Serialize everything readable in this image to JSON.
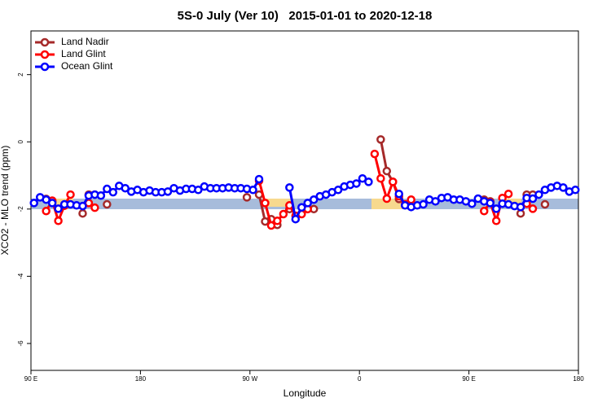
{
  "chart_data": {
    "type": "line",
    "title": "5S-0 July (Ver 10)   2015-01-01 to 2020-12-18",
    "xlabel": "Longitude",
    "ylabel": "XCO2 - MLO trend (ppm)",
    "xlim": [
      90,
      540
    ],
    "xticks": [
      {
        "value": 90,
        "label": "90 E"
      },
      {
        "value": 180,
        "label": "180"
      },
      {
        "value": 270,
        "label": "90 W"
      },
      {
        "value": 360,
        "label": "0"
      },
      {
        "value": 450,
        "label": "90 E"
      },
      {
        "value": 540,
        "label": "180"
      }
    ],
    "ylim": [
      -6.8,
      3.3
    ],
    "yticks": [
      2,
      0,
      -2,
      -4,
      -6
    ],
    "legend": "top-left",
    "x": [
      92.5,
      97.5,
      102.5,
      107.5,
      112.5,
      117.5,
      122.5,
      127.5,
      132.5,
      137.5,
      142.5,
      147.5,
      152.5,
      157.5,
      162.5,
      167.5,
      172.5,
      177.5,
      182.5,
      187.5,
      192.5,
      197.5,
      202.5,
      207.5,
      212.5,
      217.5,
      222.5,
      227.5,
      232.5,
      237.5,
      242.5,
      247.5,
      252.5,
      257.5,
      262.5,
      267.5,
      272.5,
      277.5,
      282.5,
      287.5,
      292.5,
      297.5,
      302.5,
      307.5,
      312.5,
      317.5,
      322.5,
      327.5,
      332.5,
      337.5,
      342.5,
      347.5,
      352.5,
      357.5,
      362.5,
      367.5,
      372.5,
      377.5,
      382.5,
      387.5,
      392.5,
      397.5,
      402.5,
      407.5,
      412.5,
      417.5,
      422.5,
      427.5,
      432.5,
      437.5,
      442.5,
      447.5,
      452.5,
      457.5,
      462.5,
      467.5,
      472.5,
      477.5,
      482.5,
      487.5,
      492.5,
      497.5,
      502.5,
      507.5,
      512.5,
      517.5,
      522.5,
      527.5,
      532.5,
      537.5
    ],
    "series": [
      {
        "name": "Land Nadir",
        "color": "#a52a2a",
        "values": [
          null,
          null,
          -1.7,
          -1.77,
          null,
          null,
          null,
          null,
          -2.13,
          -1.57,
          -1.57,
          null,
          -1.86,
          null,
          null,
          null,
          null,
          null,
          null,
          null,
          null,
          null,
          null,
          null,
          null,
          null,
          null,
          null,
          null,
          null,
          null,
          null,
          null,
          null,
          null,
          -1.65,
          null,
          -1.57,
          -2.37,
          -2.3,
          -2.47,
          null,
          -2.0,
          null,
          -2.13,
          -2.0,
          -2.0,
          null,
          null,
          null,
          null,
          null,
          null,
          null,
          null,
          null,
          null,
          0.07,
          -0.87,
          -1.19,
          -1.7,
          null,
          null,
          null,
          null,
          null,
          null,
          null,
          null,
          null,
          null,
          null,
          null,
          null,
          -1.72,
          -1.77,
          null,
          null,
          null,
          null,
          -2.13,
          -1.57,
          -1.57,
          null,
          -1.86,
          null,
          null,
          null,
          null,
          null
        ]
      },
      {
        "name": "Land Glint",
        "color": "#ff0000",
        "values": [
          null,
          null,
          -2.06,
          -1.75,
          -2.35,
          -1.9,
          -1.57,
          null,
          null,
          -1.82,
          -1.96,
          null,
          null,
          null,
          null,
          null,
          null,
          null,
          null,
          null,
          null,
          null,
          null,
          null,
          null,
          null,
          null,
          null,
          null,
          null,
          null,
          null,
          null,
          null,
          null,
          null,
          null,
          -1.16,
          -1.82,
          -2.49,
          -2.35,
          -2.15,
          -1.89,
          -2.2,
          -2.15,
          -2.0,
          null,
          null,
          null,
          null,
          null,
          null,
          null,
          null,
          null,
          null,
          -0.36,
          -1.09,
          -1.69,
          -1.19,
          -1.62,
          -1.86,
          -1.72,
          null,
          null,
          null,
          null,
          null,
          null,
          null,
          null,
          null,
          null,
          null,
          -2.06,
          -1.8,
          -2.35,
          -1.67,
          -1.55,
          null,
          null,
          -1.84,
          -1.99,
          null,
          null,
          null,
          null,
          null,
          null,
          null
        ]
      },
      {
        "name": "Ocean Glint",
        "color": "#0000ff",
        "values": [
          -1.82,
          -1.65,
          -1.72,
          -1.82,
          -1.99,
          -1.86,
          -1.86,
          -1.89,
          -1.91,
          -1.6,
          -1.57,
          -1.6,
          -1.4,
          -1.5,
          -1.31,
          -1.38,
          -1.48,
          -1.43,
          -1.5,
          -1.45,
          -1.5,
          -1.5,
          -1.48,
          -1.38,
          -1.45,
          -1.4,
          -1.4,
          -1.43,
          -1.33,
          -1.38,
          -1.38,
          -1.38,
          -1.36,
          -1.38,
          -1.38,
          -1.4,
          -1.43,
          -1.11,
          null,
          null,
          null,
          null,
          -1.36,
          -2.3,
          -1.95,
          -1.82,
          -1.72,
          -1.62,
          -1.57,
          -1.5,
          -1.43,
          -1.33,
          -1.28,
          -1.24,
          -1.09,
          -1.19,
          null,
          null,
          null,
          null,
          -1.55,
          -1.89,
          -1.94,
          -1.89,
          -1.86,
          -1.72,
          -1.77,
          -1.67,
          -1.65,
          -1.72,
          -1.72,
          -1.77,
          -1.84,
          -1.69,
          -1.77,
          -1.82,
          -1.99,
          -1.84,
          -1.86,
          -1.91,
          -1.94,
          -1.67,
          -1.69,
          -1.57,
          -1.43,
          -1.36,
          -1.31,
          -1.36,
          -1.48,
          -1.43
        ]
      }
    ]
  }
}
